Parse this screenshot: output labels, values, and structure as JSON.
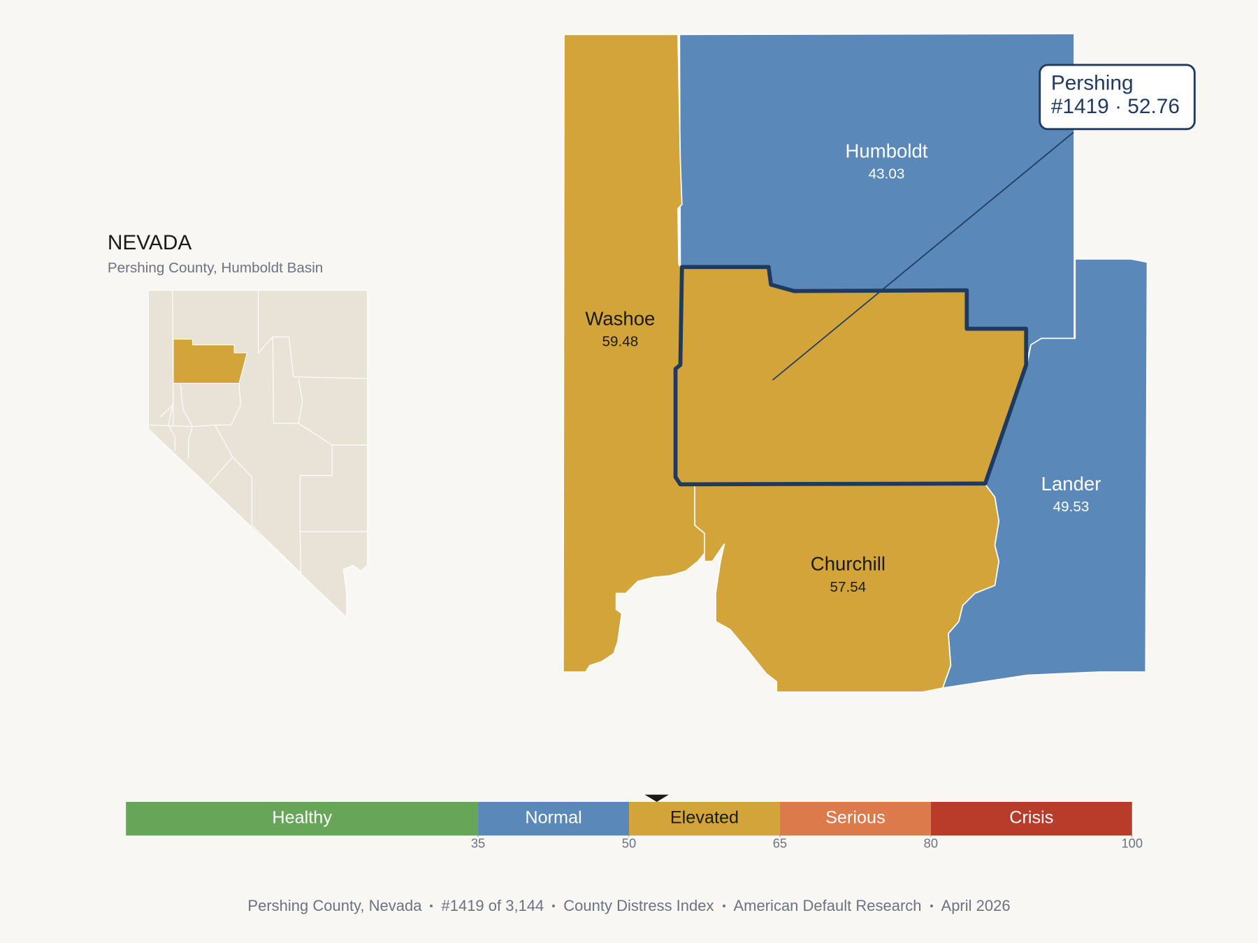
{
  "state": {
    "title": "NEVADA",
    "subtitle": "Pershing County, Humboldt Basin"
  },
  "counties": [
    {
      "name": "Humboldt",
      "value": 43.03
    },
    {
      "name": "Washoe",
      "value": 59.48
    },
    {
      "name": "Lander",
      "value": 49.53
    },
    {
      "name": "Churchill",
      "value": 57.54
    }
  ],
  "callout": {
    "name": "Pershing",
    "rank": "#1419",
    "separator": "·",
    "value": 52.76
  },
  "scale": {
    "lim": [
      0,
      100
    ],
    "ticks": [
      35,
      50,
      65,
      80,
      100
    ],
    "bands": [
      {
        "label": "Healthy",
        "color": "#67a658"
      },
      {
        "label": "Normal",
        "color": "#5a89b9"
      },
      {
        "label": "Elevated",
        "color": "#d3a43a"
      },
      {
        "label": "Serious",
        "color": "#dc7a4b"
      },
      {
        "label": "Crisis",
        "color": "#b93c2b"
      }
    ]
  },
  "footer": [
    "Pershing County, Nevada",
    "#1419 of 3,144",
    "County Distress Index",
    "American Default Research",
    "April 2026"
  ]
}
